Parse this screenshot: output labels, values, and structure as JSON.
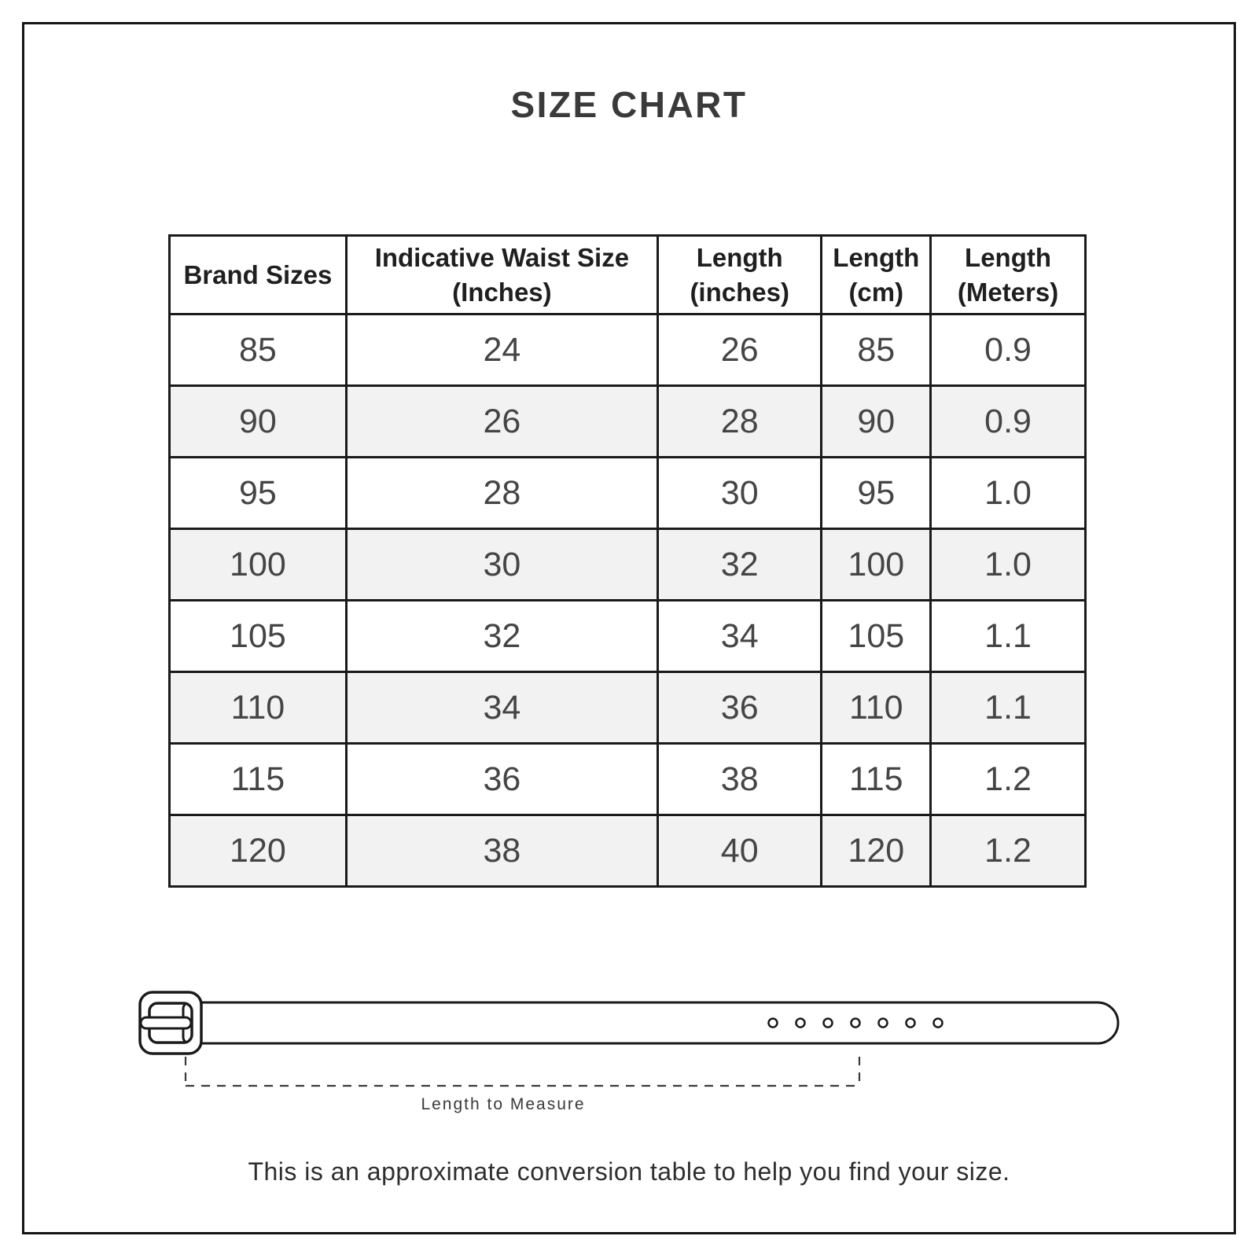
{
  "title": "SIZE CHART",
  "chart_data": {
    "type": "table",
    "title": "SIZE CHART",
    "columns": [
      "Brand Sizes",
      "Indicative Waist Size (Inches)",
      "Length (inches)",
      "Length (cm)",
      "Length (Meters)"
    ],
    "rows": [
      [
        "85",
        "24",
        "26",
        "85",
        "0.9"
      ],
      [
        "90",
        "26",
        "28",
        "90",
        "0.9"
      ],
      [
        "95",
        "28",
        "30",
        "95",
        "1.0"
      ],
      [
        "100",
        "30",
        "32",
        "100",
        "1.0"
      ],
      [
        "105",
        "32",
        "34",
        "105",
        "1.1"
      ],
      [
        "110",
        "34",
        "36",
        "110",
        "1.1"
      ],
      [
        "115",
        "36",
        "38",
        "115",
        "1.2"
      ],
      [
        "120",
        "38",
        "40",
        "120",
        "1.2"
      ]
    ],
    "column_widths_percent": [
      19.3,
      34.0,
      17.9,
      11.9,
      16.9
    ],
    "row_striping": "alternate rows shaded",
    "layout_hints": {
      "grid": "full black grid lines",
      "header": "bold two-line headers"
    }
  },
  "belt_diagram": {
    "label": "Length to Measure",
    "hole_count": 7
  },
  "footer_note": "This is an approximate conversion table to help you find your size.",
  "colors": {
    "table_border": "#1a1a1a",
    "row_alt_bg": "#f2f2f2",
    "header_text": "#1f1f1f",
    "cell_text": "#454545",
    "title_text": "#3a3a3a",
    "note_text": "#2e2e2e",
    "diagram_line": "#3a3a3a"
  }
}
